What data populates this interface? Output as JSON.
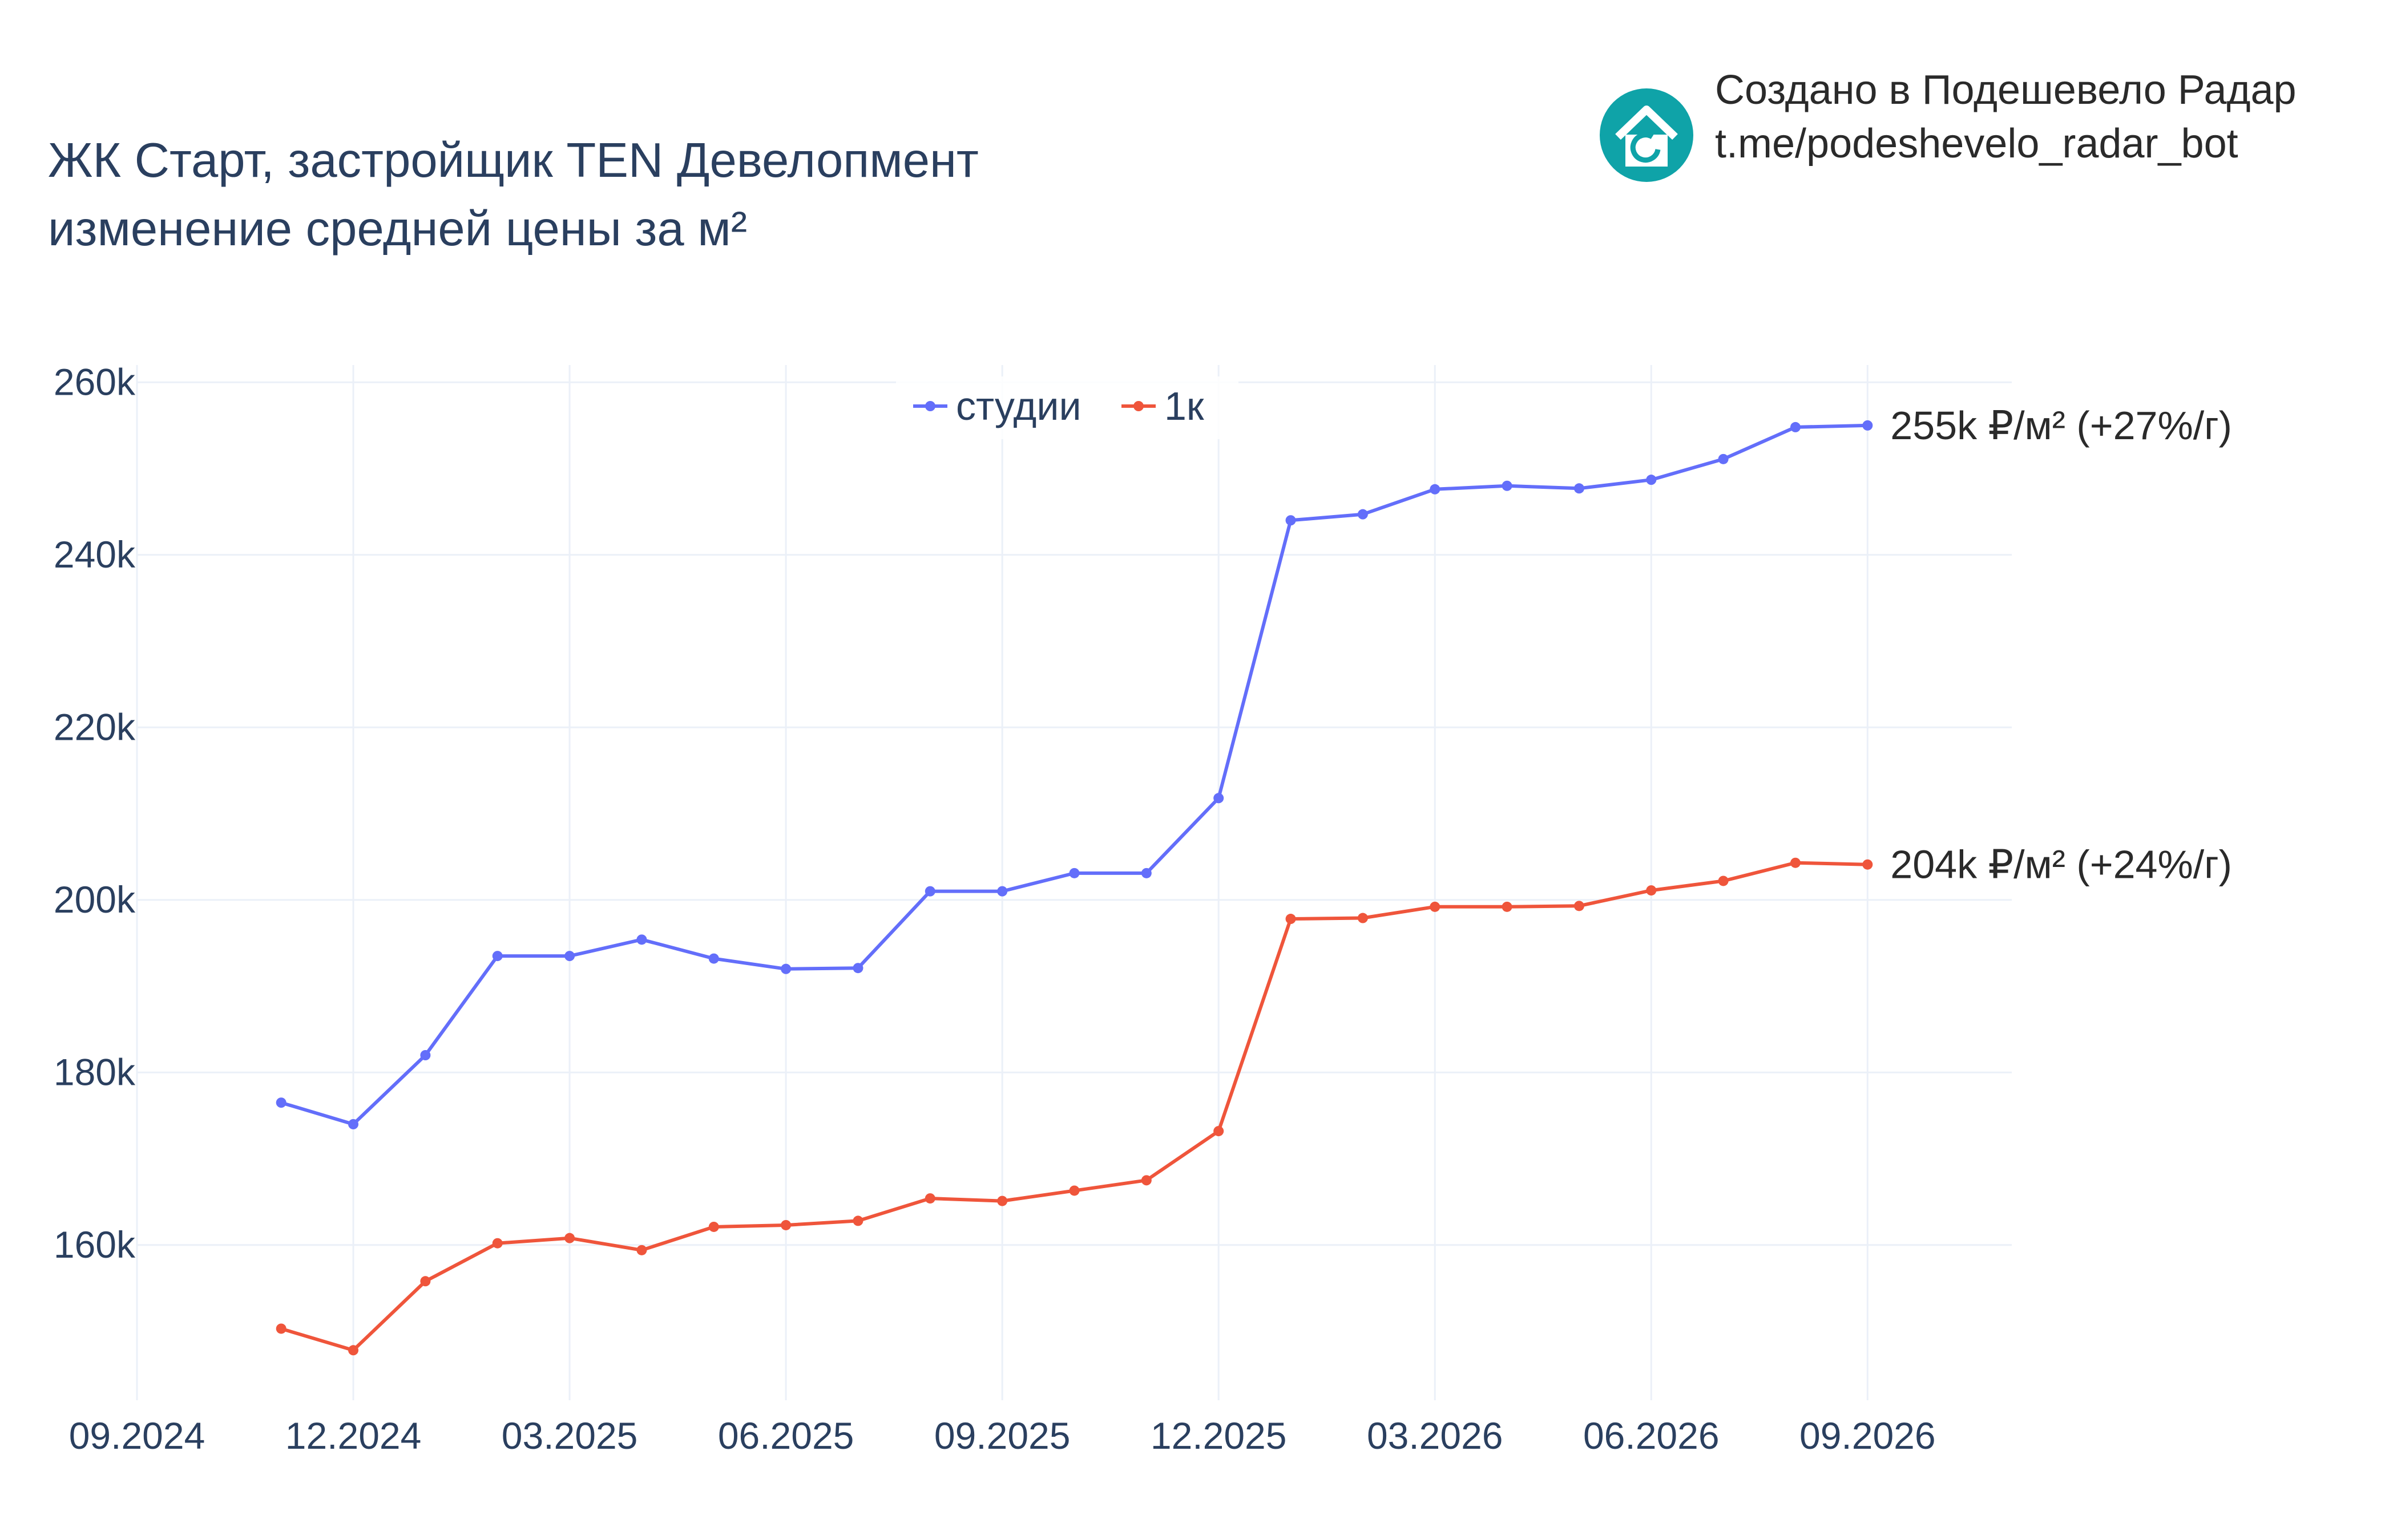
{
  "header": {
    "title_line1": "ЖК Старт, застройщик TEN Девелопмент",
    "title_line2": "изменение средней цены за м²"
  },
  "credit": {
    "line1": "Создано в Подешевело Радар",
    "line2": "t.me/podeshevelo_radar_bot",
    "icon": "house-refresh-icon",
    "icon_color": "#0fa3a8"
  },
  "chart_data": {
    "type": "line",
    "x": [
      "2024-11",
      "2024-12",
      "2025-01",
      "2025-02",
      "2025-03",
      "2025-04",
      "2025-05",
      "2025-06",
      "2025-07",
      "2025-08",
      "2025-09",
      "2025-10",
      "2025-11",
      "2025-12",
      "2026-01",
      "2026-02",
      "2026-03",
      "2026-04",
      "2026-05",
      "2026-06",
      "2026-07",
      "2026-08",
      "2026-09"
    ],
    "series": [
      {
        "name": "студии",
        "color": "#636efa",
        "values": [
          176500,
          174000,
          182000,
          193500,
          193500,
          195400,
          193200,
          192000,
          192100,
          201000,
          201000,
          203100,
          203100,
          211800,
          244000,
          244700,
          247600,
          248000,
          247700,
          248700,
          251100,
          254800,
          255000
        ],
        "end_label": "255k ₽/м² (+27%/г)"
      },
      {
        "name": "1к",
        "color": "#ef553b",
        "values": [
          150300,
          147800,
          155800,
          160200,
          160800,
          159400,
          162100,
          162300,
          162800,
          165400,
          165100,
          166300,
          167500,
          173200,
          197800,
          197900,
          199200,
          199200,
          199300,
          201100,
          202200,
          204300,
          204100
        ],
        "end_label": "204k ₽/м² (+24%/г)"
      }
    ],
    "x_ticks": [
      "09.2024",
      "12.2024",
      "03.2025",
      "06.2025",
      "09.2025",
      "12.2025",
      "03.2026",
      "06.2026",
      "09.2026"
    ],
    "y_ticks": [
      "160k",
      "180k",
      "200k",
      "220k",
      "240k",
      "260k"
    ],
    "y_tick_values": [
      160000,
      180000,
      200000,
      220000,
      240000,
      260000
    ],
    "ylim": [
      142000,
      262000
    ],
    "xlim": [
      "2024-09",
      "2026-11"
    ],
    "grid": true,
    "legend_position": "top-center",
    "xlabel": "",
    "ylabel": ""
  }
}
